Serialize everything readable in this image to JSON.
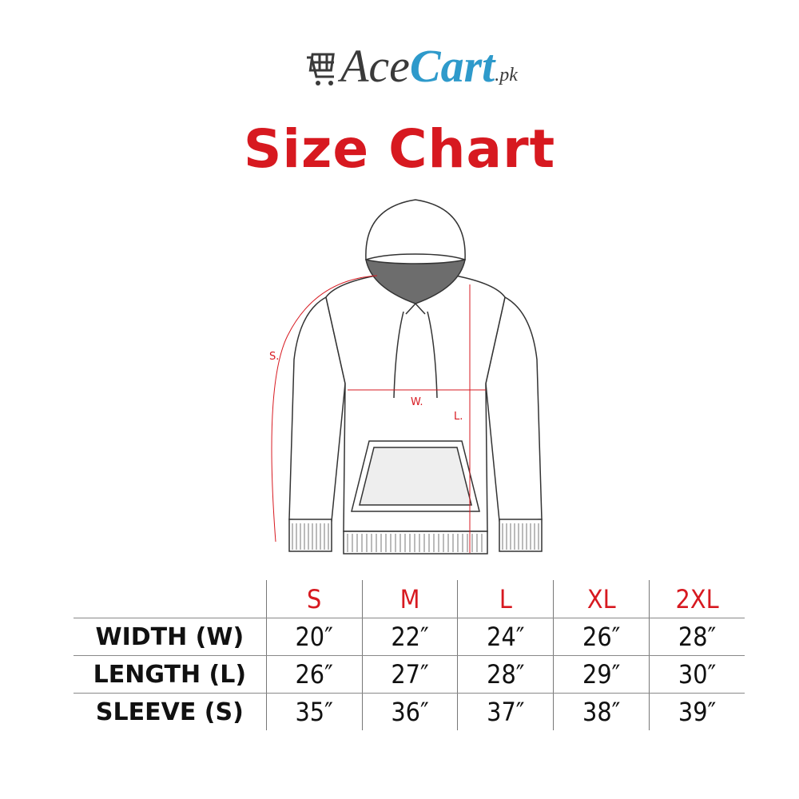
{
  "brand": {
    "name_part1": "Ace",
    "name_part2": "Cart",
    "suffix": ".pk",
    "colors": {
      "dark": "#3a3a3a",
      "blue": "#2e9acb"
    }
  },
  "title": "Size Chart",
  "diagram_labels": {
    "sleeve": "S.",
    "width": "W.",
    "length": "L."
  },
  "colors": {
    "accent": "#d71920",
    "text": "#111111"
  },
  "table": {
    "sizes": [
      "S",
      "M",
      "L",
      "XL",
      "2XL"
    ],
    "rows": [
      {
        "label": "WIDTH (W)",
        "values": [
          "20″",
          "22″",
          "24″",
          "26″",
          "28″"
        ]
      },
      {
        "label": "LENGTH (L)",
        "values": [
          "26″",
          "27″",
          "28″",
          "29″",
          "30″"
        ]
      },
      {
        "label": "SLEEVE (S)",
        "values": [
          "35″",
          "36″",
          "37″",
          "38″",
          "39″"
        ]
      }
    ]
  }
}
